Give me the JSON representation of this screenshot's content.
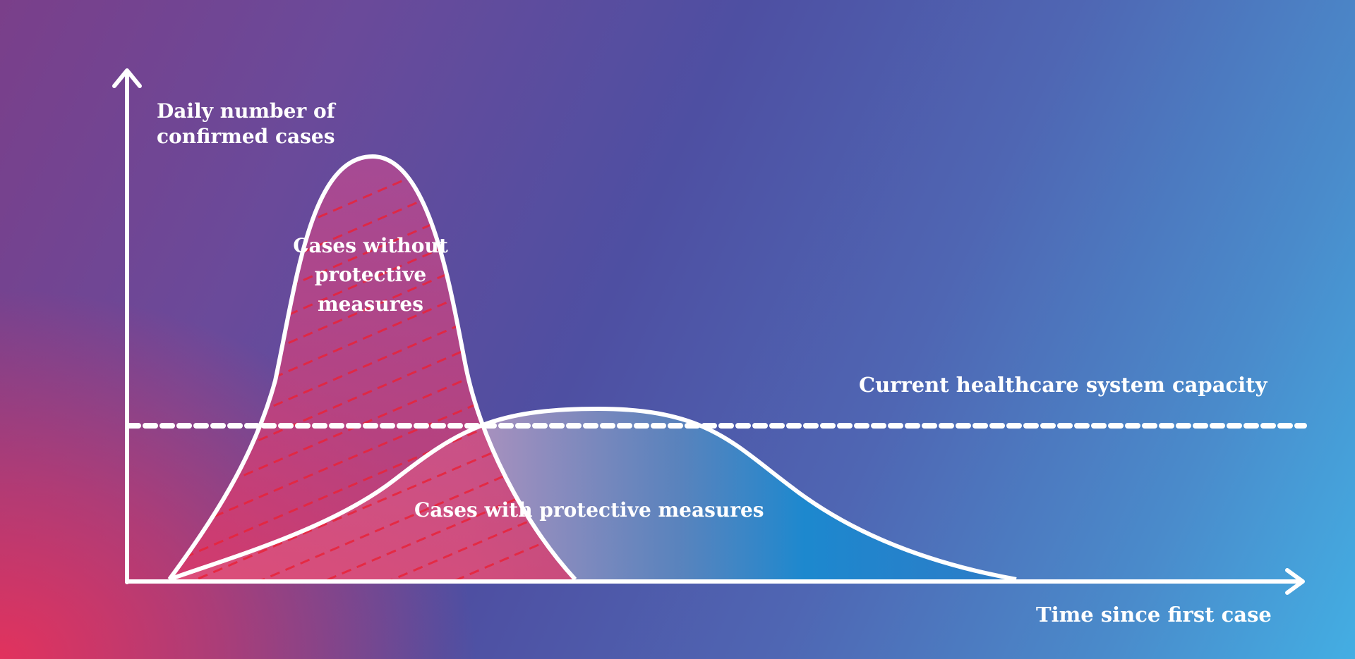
{
  "diagram": {
    "y_axis_label": "Daily number of confirmed cases",
    "x_axis_label": "Time since first case",
    "capacity_label": "Current healthcare system capacity",
    "curve_without_label": "Cases without protective measures",
    "curve_with_label": "Cases with protective measures"
  },
  "colors": {
    "background_left": "#e8315a",
    "background_mid": "#4e4fa2",
    "background_right": "#43aee3",
    "unmitigated_fill": "#c23d86",
    "mitigated_fill_start": "#c4a0c0",
    "mitigated_fill_end": "#1788ce",
    "hatch": "#e8243a",
    "lines": "#ffffff"
  }
}
